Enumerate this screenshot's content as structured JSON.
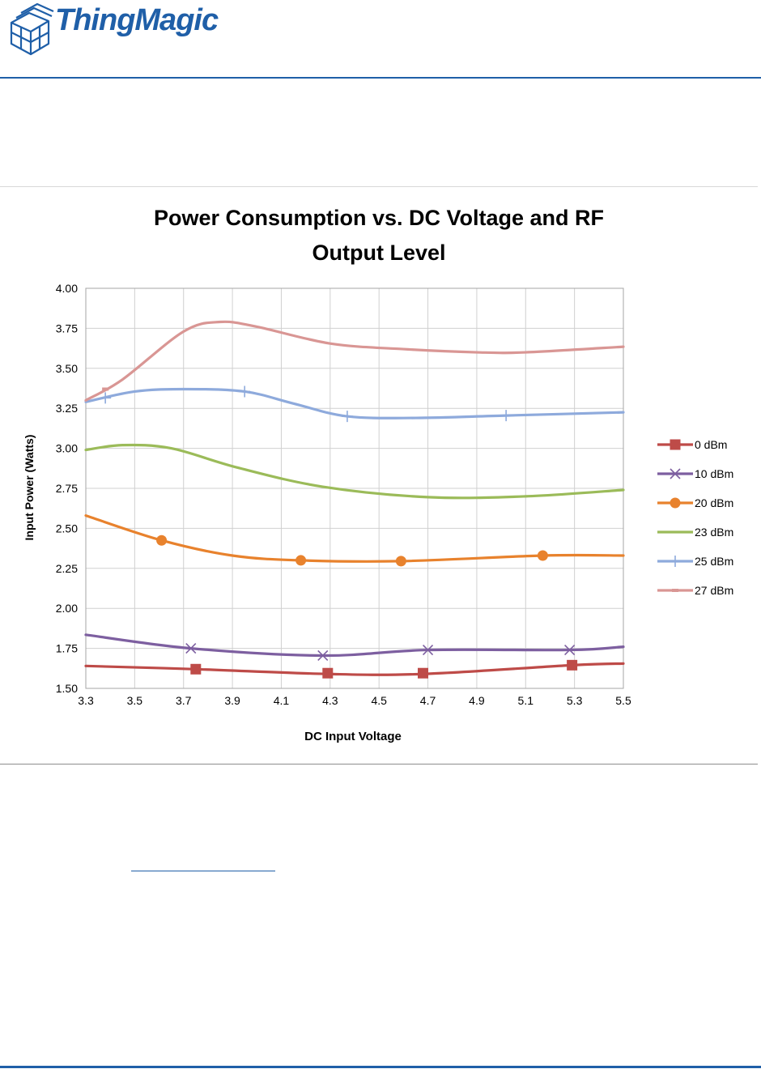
{
  "brand": {
    "name": "ThingMagic",
    "logo_icon": "stacked-cubes-logo-icon",
    "color": "#1f5fa8"
  },
  "chart_data": {
    "type": "line",
    "title_lines": [
      "Power Consumption vs. DC Voltage and RF",
      "Output Level"
    ],
    "xlabel": "DC Input Voltage",
    "ylabel": "Input Power (Watts)",
    "xlim": [
      3.3,
      5.5
    ],
    "ylim": [
      1.5,
      4.0
    ],
    "x_ticks": [
      "3.3",
      "3.5",
      "3.7",
      "3.9",
      "4.1",
      "4.3",
      "4.5",
      "4.7",
      "4.9",
      "5.1",
      "5.3",
      "5.5"
    ],
    "y_ticks": [
      "1.50",
      "1.75",
      "2.00",
      "2.25",
      "2.50",
      "2.75",
      "3.00",
      "3.25",
      "3.50",
      "3.75",
      "4.00"
    ],
    "grid": "vertical and horizontal",
    "legend_position": "right",
    "series": [
      {
        "name": "0 dBm",
        "color": "#be4b48",
        "marker": "square",
        "points": [
          [
            3.3,
            1.64
          ],
          [
            3.75,
            1.62
          ],
          [
            4.29,
            1.59
          ],
          [
            4.68,
            1.59
          ],
          [
            5.29,
            1.645
          ],
          [
            5.5,
            1.655
          ]
        ],
        "markers": [
          [
            3.75,
            1.62
          ],
          [
            4.29,
            1.595
          ],
          [
            4.68,
            1.595
          ],
          [
            5.29,
            1.645
          ]
        ]
      },
      {
        "name": "10 dBm",
        "color": "#7d5fa0",
        "marker": "x",
        "points": [
          [
            3.3,
            1.835
          ],
          [
            3.73,
            1.75
          ],
          [
            4.27,
            1.705
          ],
          [
            4.7,
            1.74
          ],
          [
            5.28,
            1.74
          ],
          [
            5.5,
            1.76
          ]
        ],
        "markers": [
          [
            3.73,
            1.75
          ],
          [
            4.27,
            1.705
          ],
          [
            4.7,
            1.74
          ],
          [
            5.28,
            1.74
          ]
        ]
      },
      {
        "name": "20 dBm",
        "color": "#e8822d",
        "marker": "circle",
        "points": [
          [
            3.3,
            2.58
          ],
          [
            3.61,
            2.425
          ],
          [
            3.9,
            2.33
          ],
          [
            4.18,
            2.3
          ],
          [
            4.59,
            2.295
          ],
          [
            5.17,
            2.33
          ],
          [
            5.5,
            2.33
          ]
        ],
        "markers": [
          [
            3.61,
            2.425
          ],
          [
            4.18,
            2.3
          ],
          [
            4.59,
            2.295
          ],
          [
            5.17,
            2.33
          ]
        ]
      },
      {
        "name": "23 dBm",
        "color": "#9bbb59",
        "marker": "none",
        "points": [
          [
            3.3,
            2.99
          ],
          [
            3.45,
            3.02
          ],
          [
            3.65,
            3.0
          ],
          [
            3.92,
            2.88
          ],
          [
            4.27,
            2.76
          ],
          [
            4.7,
            2.695
          ],
          [
            5.1,
            2.7
          ],
          [
            5.5,
            2.74
          ]
        ],
        "markers": []
      },
      {
        "name": "25 dBm",
        "color": "#8eaadc",
        "marker": "plus",
        "points": [
          [
            3.3,
            3.29
          ],
          [
            3.5,
            3.355
          ],
          [
            3.7,
            3.37
          ],
          [
            3.95,
            3.355
          ],
          [
            4.15,
            3.28
          ],
          [
            4.37,
            3.2
          ],
          [
            4.65,
            3.19
          ],
          [
            5.02,
            3.205
          ],
          [
            5.5,
            3.225
          ]
        ],
        "markers": [
          [
            3.38,
            3.315
          ],
          [
            3.95,
            3.355
          ],
          [
            4.37,
            3.2
          ],
          [
            5.02,
            3.205
          ]
        ]
      },
      {
        "name": "27 dBm",
        "color": "#d99694",
        "marker": "dash",
        "points": [
          [
            3.3,
            3.3
          ],
          [
            3.45,
            3.43
          ],
          [
            3.7,
            3.73
          ],
          [
            3.85,
            3.79
          ],
          [
            4.0,
            3.76
          ],
          [
            4.3,
            3.655
          ],
          [
            4.6,
            3.62
          ],
          [
            4.9,
            3.6
          ],
          [
            5.1,
            3.6
          ],
          [
            5.5,
            3.635
          ]
        ],
        "markers": [
          [
            3.38,
            3.37
          ]
        ]
      }
    ]
  }
}
